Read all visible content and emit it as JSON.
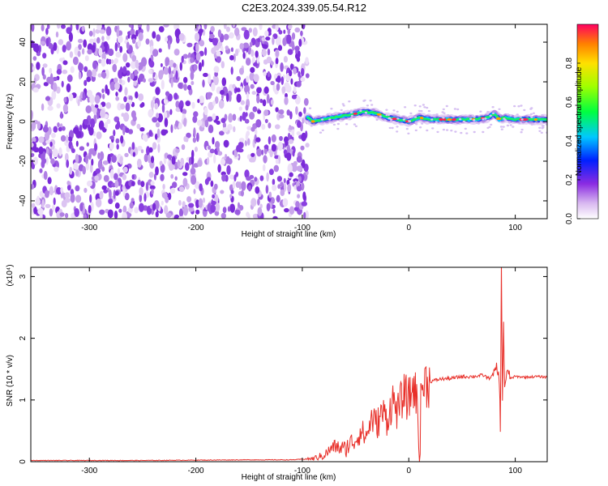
{
  "figure_title": "C2E3.2024.339.05.54.R12",
  "chart_data": [
    {
      "type": "heatmap",
      "title": "C2E3.2024.339.05.54.R12",
      "xlabel": "Height of straight line (km)",
      "ylabel": "Frequency (Hz)",
      "xlim": [
        -355,
        130
      ],
      "ylim": [
        -49,
        49
      ],
      "x_ticks": [
        -300,
        -200,
        -100,
        0,
        100
      ],
      "x_tick_labels": [
        "-300",
        "-200",
        "-100",
        "0",
        "100"
      ],
      "y_ticks": [
        -40,
        -20,
        0,
        20,
        40
      ],
      "y_tick_labels": [
        "-40",
        "-20",
        "0",
        "20",
        "40"
      ],
      "colorbar": {
        "label": "Normalized spectral amplitude",
        "range": [
          0,
          1
        ],
        "ticks": [
          0.0,
          0.2,
          0.4,
          0.6,
          0.8
        ],
        "tick_labels": [
          "0.0",
          "0.2",
          "0.4",
          "0.6",
          "0.8"
        ]
      },
      "noise_region_x": [
        -355,
        -95
      ],
      "ridge": {
        "x": [
          -95,
          -90,
          -80,
          -70,
          -60,
          -50,
          -40,
          -30,
          -20,
          -10,
          0,
          10,
          20,
          40,
          60,
          75,
          80,
          85,
          90,
          100,
          110,
          120,
          130
        ],
        "freq": [
          2,
          0,
          1,
          2,
          3,
          4,
          5,
          4,
          2,
          1,
          0,
          2,
          1,
          1,
          1,
          2,
          4,
          1,
          2,
          1,
          1,
          1,
          1
        ],
        "peak_amplitude": 0.95
      }
    },
    {
      "type": "line",
      "xlabel": "Height of straight line (km)",
      "ylabel": "SNR (10 * v/v)",
      "y_multiplier": "(x10⁴)",
      "xlim": [
        -355,
        130
      ],
      "ylim": [
        0,
        3.15
      ],
      "x_ticks": [
        -300,
        -200,
        -100,
        0,
        100
      ],
      "x_tick_labels": [
        "-300",
        "-200",
        "-100",
        "0",
        "100"
      ],
      "y_ticks": [
        0,
        1,
        2,
        3
      ],
      "y_tick_labels": [
        "0",
        "1",
        "2",
        "3"
      ],
      "color": "#e8302a",
      "series": [
        {
          "x": [
            -355,
            -250,
            -150,
            -110,
            -100,
            -90,
            -80,
            -70,
            -60,
            -55,
            -50,
            -45,
            -40,
            -35,
            -30,
            -25,
            -20,
            -15,
            -10,
            -5,
            0,
            5,
            8,
            10,
            12,
            15,
            20,
            30,
            40,
            50,
            60,
            70,
            75,
            80,
            83,
            85,
            86,
            87,
            88,
            89,
            90,
            92,
            95,
            100,
            110,
            120,
            130
          ],
          "y": [
            0.02,
            0.02,
            0.03,
            0.03,
            0.04,
            0.05,
            0.1,
            0.25,
            0.2,
            0.3,
            0.35,
            0.5,
            0.4,
            0.7,
            0.6,
            0.8,
            0.7,
            1.0,
            0.8,
            1.1,
            1.0,
            1.25,
            0.9,
            0.2,
            1.2,
            1.28,
            1.3,
            1.34,
            1.35,
            1.38,
            1.38,
            1.4,
            1.35,
            1.42,
            1.5,
            1.3,
            0.6,
            3.15,
            0.9,
            2.3,
            1.2,
            1.45,
            1.35,
            1.38,
            1.37,
            1.38,
            1.37
          ]
        }
      ]
    }
  ]
}
